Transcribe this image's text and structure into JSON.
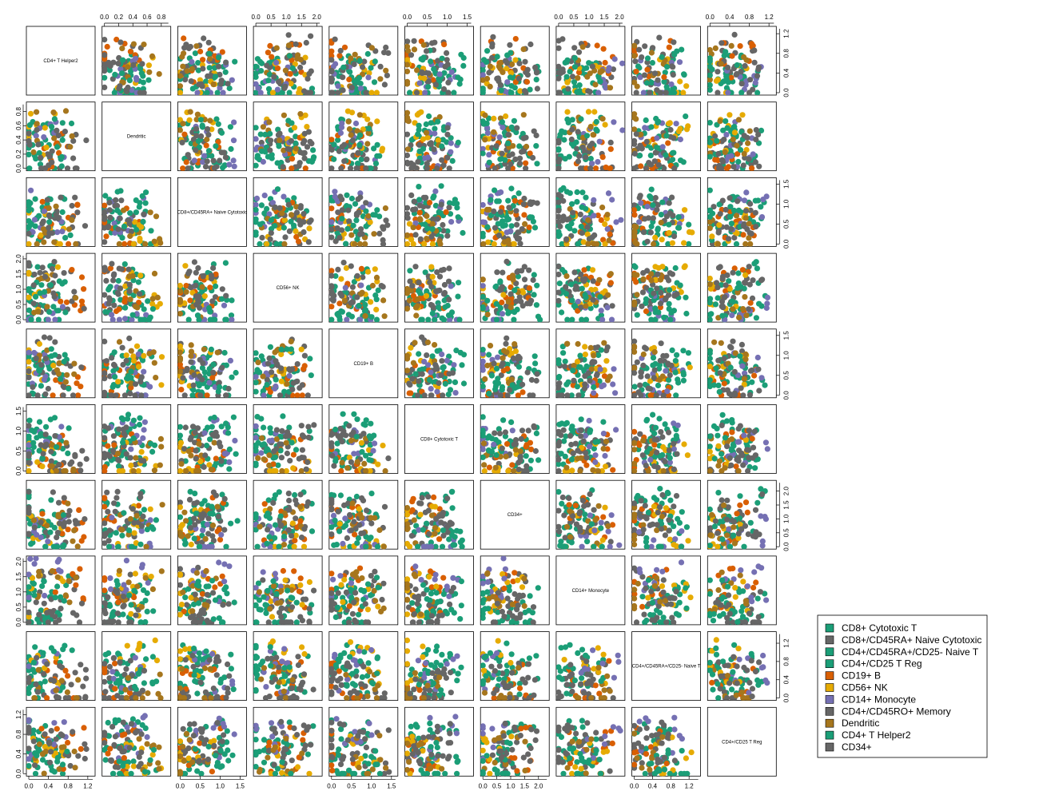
{
  "chart_data": {
    "type": "scatter",
    "subtype": "scatterplot-matrix",
    "variables": [
      {
        "name": "CD4+ T Helper2",
        "range": [
          0,
          1.3
        ],
        "ticks": [
          "0.0",
          "0.4",
          "0.8",
          "1.2"
        ]
      },
      {
        "name": "Dendritic",
        "range": [
          0,
          0.9
        ],
        "ticks": [
          "0.0",
          "0.2",
          "0.4",
          "0.6",
          "0.8"
        ]
      },
      {
        "name": "CD8+/CD45RA+ Naive Cytotoxic",
        "range": [
          0,
          1.6
        ],
        "ticks": [
          "0.0",
          "0.5",
          "1.0",
          "1.5"
        ]
      },
      {
        "name": "CD56+ NK",
        "range": [
          0,
          2.1
        ],
        "ticks": [
          "0.0",
          "0.5",
          "1.0",
          "1.5",
          "2.0"
        ]
      },
      {
        "name": "CD19+ B",
        "range": [
          0,
          1.6
        ],
        "ticks": [
          "0.0",
          "0.5",
          "1.0",
          "1.5"
        ]
      },
      {
        "name": "CD8+ Cytotoxic T",
        "range": [
          0,
          1.6
        ],
        "ticks": [
          "0.0",
          "0.5",
          "1.0",
          "1.5"
        ]
      },
      {
        "name": "CD34+",
        "range": [
          0,
          2.3
        ],
        "ticks": [
          "0.0",
          "0.5",
          "1.0",
          "1.5",
          "2.0"
        ]
      },
      {
        "name": "CD14+ Monocyte",
        "range": [
          0,
          2.1
        ],
        "ticks": [
          "0.0",
          "0.5",
          "1.0",
          "1.5",
          "2.0"
        ]
      },
      {
        "name": "CD4+/CD45RA+/CD25- Naive T",
        "range": [
          0,
          1.4
        ],
        "ticks": [
          "0.0",
          "0.4",
          "0.8",
          "1.2"
        ]
      },
      {
        "name": "CD4+/CD25 T Reg",
        "range": [
          0,
          1.3
        ],
        "ticks": [
          "0.0",
          "0.4",
          "0.8",
          "1.2"
        ]
      }
    ],
    "series": [
      {
        "name": "CD8+ Cytotoxic T",
        "color": "#1b9e77"
      },
      {
        "name": "CD8+/CD45RA+ Naive Cytotoxic",
        "color": "#666666"
      },
      {
        "name": "CD4+/CD45RA+/CD25- Naive T",
        "color": "#1b9e77"
      },
      {
        "name": "CD4+/CD25 T Reg",
        "color": "#1b9e77"
      },
      {
        "name": "CD19+ B",
        "color": "#d95f02"
      },
      {
        "name": "CD56+ NK",
        "color": "#e6ab02"
      },
      {
        "name": "CD14+ Monocyte",
        "color": "#7570b3"
      },
      {
        "name": "CD4+/CD45RO+ Memory",
        "color": "#666666"
      },
      {
        "name": "Dendritic",
        "color": "#a6761d"
      },
      {
        "name": "CD4+ T Helper2",
        "color": "#1b9e77"
      },
      {
        "name": "CD34+",
        "color": "#666666"
      }
    ],
    "legend_position": "bottom-right",
    "grid": false
  }
}
